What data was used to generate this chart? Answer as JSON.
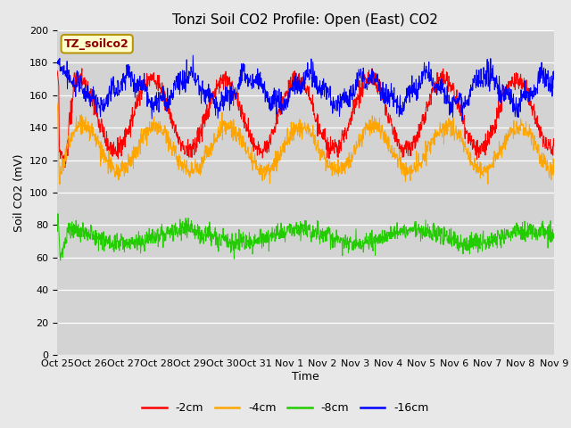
{
  "title": "Tonzi Soil CO2 Profile: Open (East) CO2",
  "ylabel": "Soil CO2 (mV)",
  "xlabel": "Time",
  "ylim": [
    0,
    200
  ],
  "yticks": [
    0,
    20,
    40,
    60,
    80,
    100,
    120,
    140,
    160,
    180,
    200
  ],
  "xtick_labels": [
    "Oct 25",
    "Oct 26",
    "Oct 27",
    "Oct 28",
    "Oct 29",
    "Oct 30",
    "Oct 31",
    "Nov 1",
    "Nov 2",
    "Nov 3",
    "Nov 4",
    "Nov 5",
    "Nov 6",
    "Nov 7",
    "Nov 8",
    "Nov 9"
  ],
  "n_points": 1500,
  "series": {
    "-2cm": {
      "color": "#ff0000"
    },
    "-4cm": {
      "color": "#ffa500"
    },
    "-8cm": {
      "color": "#22cc00"
    },
    "-16cm": {
      "color": "#0000ff"
    }
  },
  "legend_labels": [
    "-2cm",
    "-4cm",
    "-8cm",
    "-16cm"
  ],
  "legend_colors": [
    "#ff0000",
    "#ffa500",
    "#22cc00",
    "#0000ff"
  ],
  "background_color": "#e8e8e8",
  "plot_bg_color": "#d3d3d3",
  "annotation_text": "TZ_soilco2",
  "annotation_color": "#8b0000",
  "annotation_bg": "#ffffcc",
  "annotation_border": "#b8960c",
  "title_fontsize": 11,
  "axis_fontsize": 9,
  "tick_fontsize": 8,
  "legend_fontsize": 9
}
